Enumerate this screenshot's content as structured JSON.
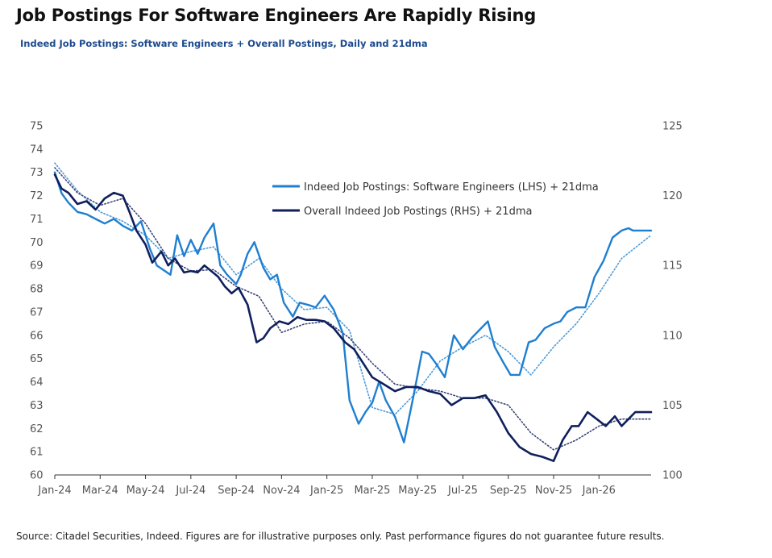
{
  "header": {
    "title": "Job Postings For Software Engineers Are Rapidly Rising",
    "subtitle": "Indeed Job Postings: Software Engineers + Overall Postings, Daily and 21dma"
  },
  "footer": {
    "source": "Source: Citadel Securities, Indeed. Figures are for illustrative purposes only. Past performance figures do not guarantee future results."
  },
  "colors": {
    "software": "#1f7fd0",
    "overall": "#0f1f5c",
    "software_ma": "#4b9ad8",
    "overall_ma": "#3a4577",
    "axis": "#555555"
  },
  "chart_data": {
    "type": "line",
    "title": "Job Postings For Software Engineers Are Rapidly Rising",
    "subtitle": "Indeed Job Postings: Software Engineers + Overall Postings, Daily and 21dma",
    "xlabel": "",
    "ylabel": "",
    "y2label": "",
    "x_ticks": [
      "Jan-24",
      "Mar-24",
      "May-24",
      "Jul-24",
      "Sep-24",
      "Nov-24",
      "Jan-25",
      "Mar-25",
      "May-25",
      "Jul-25",
      "Sep-25",
      "Nov-25",
      "Jan-26"
    ],
    "ylim": [
      60,
      75
    ],
    "y_ticks": [
      60,
      61,
      62,
      63,
      64,
      65,
      66,
      67,
      68,
      69,
      70,
      71,
      72,
      73,
      74,
      75
    ],
    "y2lim": [
      100,
      125
    ],
    "y2_ticks": [
      100,
      105,
      110,
      115,
      120,
      125
    ],
    "legend_position": "top-center",
    "grid": false,
    "x_unit": "months since Jan-24",
    "series": [
      {
        "name": "Indeed Job Postings: Software Engineers (LHS) + 21dma",
        "axis": "left",
        "style": "solid",
        "x": [
          0,
          0.3,
          0.6,
          1,
          1.4,
          1.8,
          2.2,
          2.6,
          3,
          3.4,
          3.8,
          4.2,
          4.5,
          4.8,
          5.1,
          5.4,
          5.7,
          6,
          6.3,
          6.6,
          7,
          7.3,
          7.6,
          8,
          8.2,
          8.5,
          8.8,
          9.2,
          9.5,
          9.8,
          10.1,
          10.5,
          10.8,
          11.2,
          11.5,
          11.9,
          12.3,
          12.7,
          13,
          13.4,
          13.7,
          14,
          14.3,
          14.6,
          15,
          15.4,
          15.8,
          16.2,
          16.5,
          16.8,
          17.2,
          17.6,
          18,
          18.4,
          18.7,
          19.1,
          19.4,
          19.8,
          20.1,
          20.5,
          20.9,
          21.2,
          21.6,
          22,
          22.3,
          22.6,
          23,
          23.4,
          23.8,
          24.2,
          24.6,
          25,
          25.3,
          25.5,
          25.7,
          25.9,
          26.1,
          26.3
        ],
        "values": [
          73.0,
          72.1,
          71.7,
          71.3,
          71.2,
          71.0,
          70.8,
          71.0,
          70.7,
          70.5,
          70.9,
          69.7,
          69.0,
          68.8,
          68.6,
          70.3,
          69.4,
          70.1,
          69.5,
          70.2,
          70.8,
          69.0,
          68.6,
          68.2,
          68.6,
          69.5,
          70.0,
          68.9,
          68.4,
          68.6,
          67.4,
          66.8,
          67.4,
          67.3,
          67.2,
          67.7,
          67.1,
          66.1,
          63.2,
          62.2,
          62.7,
          63.1,
          64.0,
          63.2,
          62.5,
          61.4,
          63.3,
          65.3,
          65.2,
          64.8,
          64.2,
          66.0,
          65.4,
          65.9,
          66.2,
          66.6,
          65.5,
          64.8,
          64.3,
          64.3,
          65.7,
          65.8,
          66.3,
          66.5,
          66.6,
          67.0,
          67.2,
          67.2,
          68.5,
          69.2,
          70.2,
          70.5,
          70.6,
          70.5,
          70.5,
          70.5,
          70.5,
          70.5
        ]
      },
      {
        "name": "Overall Indeed Job Postings (RHS) + 21dma",
        "axis": "right",
        "style": "solid",
        "x": [
          0,
          0.3,
          0.6,
          1,
          1.4,
          1.8,
          2.2,
          2.6,
          3,
          3.3,
          3.6,
          4,
          4.3,
          4.7,
          5,
          5.3,
          5.7,
          6,
          6.3,
          6.6,
          6.9,
          7.2,
          7.5,
          7.8,
          8.1,
          8.5,
          8.9,
          9.2,
          9.5,
          9.9,
          10.3,
          10.7,
          11.1,
          11.5,
          11.9,
          12.3,
          12.8,
          13.2,
          13.6,
          14,
          14.5,
          15,
          15.5,
          16,
          16.5,
          17,
          17.5,
          18,
          18.5,
          19,
          19.5,
          20,
          20.5,
          21,
          21.5,
          22,
          22.4,
          22.8,
          23.1,
          23.5,
          23.9,
          24.3,
          24.7,
          25,
          25.3,
          25.6,
          25.9,
          26.1,
          26.3
        ],
        "values": [
          121.5,
          120.5,
          120.2,
          119.4,
          119.6,
          119.0,
          119.8,
          120.2,
          120.0,
          118.8,
          117.5,
          116.5,
          115.2,
          116.0,
          115.0,
          115.5,
          114.5,
          114.6,
          114.5,
          115.0,
          114.6,
          114.2,
          113.5,
          113.0,
          113.4,
          112.2,
          109.5,
          109.8,
          110.5,
          111.0,
          110.8,
          111.3,
          111.1,
          111.1,
          111.0,
          110.5,
          109.5,
          109.0,
          108.0,
          107.0,
          106.5,
          106.0,
          106.3,
          106.3,
          106.0,
          105.8,
          105.0,
          105.5,
          105.5,
          105.7,
          104.5,
          103.0,
          102.0,
          101.5,
          101.3,
          101.0,
          102.5,
          103.5,
          103.5,
          104.5,
          104.0,
          103.5,
          104.2,
          103.5,
          104.0,
          104.5,
          104.5,
          104.5,
          104.5
        ]
      },
      {
        "name": "",
        "axis": "left",
        "style": "dotted",
        "x": [
          0,
          1,
          2,
          3,
          4,
          5,
          6,
          7,
          8,
          9,
          10,
          11,
          12,
          13,
          14,
          15,
          16,
          17,
          18,
          19,
          20,
          21,
          22,
          23,
          24,
          25,
          26.3
        ],
        "values": [
          73.4,
          72.2,
          71.3,
          70.9,
          70.3,
          69.3,
          69.6,
          69.8,
          68.6,
          69.3,
          68.0,
          67.1,
          67.2,
          66.2,
          62.9,
          62.6,
          63.6,
          64.9,
          65.5,
          66.0,
          65.3,
          64.3,
          65.5,
          66.5,
          67.8,
          69.3,
          70.3
        ]
      },
      {
        "name": "",
        "axis": "right",
        "style": "dotted",
        "x": [
          0,
          1,
          2,
          3,
          4,
          5,
          6,
          7,
          8,
          9,
          10,
          11,
          12,
          13,
          14,
          15,
          16,
          17,
          18,
          19,
          20,
          21,
          22,
          23,
          24,
          25,
          26.3
        ],
        "values": [
          122.0,
          120.2,
          119.3,
          119.8,
          118.0,
          115.5,
          114.6,
          114.7,
          113.5,
          112.8,
          110.2,
          110.8,
          111.0,
          109.8,
          108.0,
          106.5,
          106.2,
          106.0,
          105.5,
          105.5,
          105.0,
          103.0,
          101.8,
          102.5,
          103.5,
          104.0,
          104.0
        ]
      }
    ]
  }
}
